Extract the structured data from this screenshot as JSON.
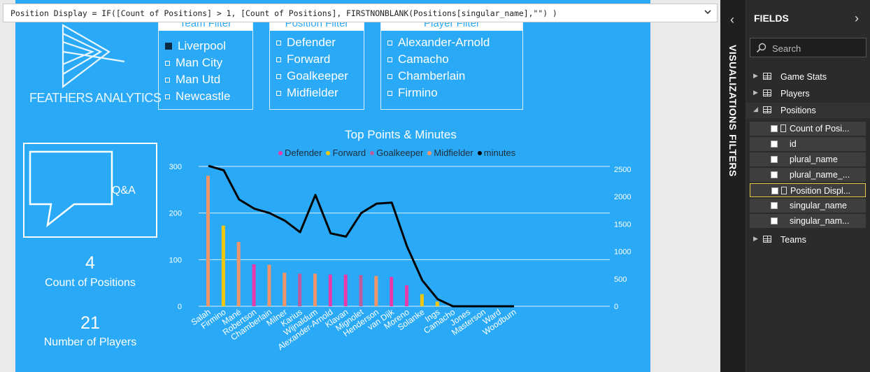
{
  "formula": {
    "text": "Position Display = IF([Count of Positions] > 1, [Count of Positions], FIRSTNONBLANK(Positions[singular_name],\"\") )"
  },
  "logo": {
    "text": "FEATHERS ANALYTICS"
  },
  "slicers": [
    {
      "title": "Team Filter",
      "items": [
        {
          "label": "Liverpool",
          "checked": true
        },
        {
          "label": "Man City",
          "checked": false
        },
        {
          "label": "Man Utd",
          "checked": false
        },
        {
          "label": "Newcastle",
          "checked": false
        }
      ]
    },
    {
      "title": "Position Filter",
      "items": [
        {
          "label": "Defender",
          "checked": false
        },
        {
          "label": "Forward",
          "checked": false
        },
        {
          "label": "Goalkeeper",
          "checked": false
        },
        {
          "label": "Midfielder",
          "checked": false
        }
      ]
    },
    {
      "title": "Player Filter",
      "items": [
        {
          "label": "Alexander-Arnold",
          "checked": false
        },
        {
          "label": "Camacho",
          "checked": false
        },
        {
          "label": "Chamberlain",
          "checked": false
        },
        {
          "label": "Firmino",
          "checked": false
        }
      ]
    }
  ],
  "qa": {
    "label": "Q&A"
  },
  "cards": [
    {
      "value": "4",
      "label": "Count of Positions"
    },
    {
      "value": "21",
      "label": "Number of Players"
    }
  ],
  "colors": {
    "defender": "#e83aaa",
    "forward": "#f2c80f",
    "goalkeeper": "#b95d9e",
    "midfielder": "#f0956a",
    "minutes": "#000000",
    "canvas": "#2aaaf6"
  },
  "chart_data": {
    "type": "bar",
    "title": "Top Points & Minutes",
    "categories": [
      "Salah",
      "Firmino",
      "Mané",
      "Robertson",
      "Chamberlain",
      "Milner",
      "Karius",
      "Wijnaldum",
      "Alexander-Arnold",
      "Klavan",
      "Mignolet",
      "Henderson",
      "van Dijk",
      "Moreno",
      "Solanke",
      "Ings",
      "Camacho",
      "Jones",
      "Masterson",
      "Ward",
      "Woodburn"
    ],
    "series": [
      {
        "name": "Defender",
        "values": [
          null,
          null,
          null,
          90,
          null,
          null,
          null,
          null,
          68,
          68,
          null,
          null,
          63,
          45,
          null,
          null,
          null,
          null,
          null,
          null,
          null
        ]
      },
      {
        "name": "Forward",
        "values": [
          null,
          173,
          null,
          null,
          null,
          null,
          null,
          null,
          null,
          null,
          null,
          null,
          null,
          null,
          26,
          10,
          null,
          null,
          null,
          null,
          null
        ]
      },
      {
        "name": "Goalkeeper",
        "values": [
          null,
          null,
          null,
          null,
          null,
          null,
          70,
          null,
          null,
          null,
          67,
          null,
          null,
          null,
          null,
          null,
          null,
          null,
          null,
          null,
          null
        ]
      },
      {
        "name": "Midfielder",
        "values": [
          280,
          null,
          138,
          null,
          89,
          72,
          null,
          70,
          null,
          null,
          null,
          65,
          null,
          null,
          null,
          null,
          null,
          null,
          null,
          null,
          null
        ]
      },
      {
        "name": "minutes",
        "values": [
          2560,
          2480,
          1950,
          1780,
          1700,
          1560,
          1350,
          2030,
          1330,
          1270,
          1700,
          1870,
          1890,
          1090,
          470,
          130,
          0,
          0,
          0,
          0,
          0
        ]
      }
    ],
    "y_left": {
      "ticks": [
        0,
        100,
        200,
        300
      ],
      "range": [
        0,
        300
      ]
    },
    "y_right": {
      "ticks": [
        0,
        500,
        1000,
        1500,
        2000,
        2500
      ],
      "range": [
        0,
        2550
      ]
    },
    "legend": "top-center",
    "grid": true
  },
  "panel": {
    "visualizations_label": "VISUALIZATIONS",
    "filters_label": "FILTERS",
    "fields_title": "FIELDS",
    "search_placeholder": "Search",
    "tables": [
      {
        "name": "Game Stats",
        "expanded": false
      },
      {
        "name": "Players",
        "expanded": false
      },
      {
        "name": "Positions",
        "expanded": true
      },
      {
        "name": "Teams",
        "expanded": false
      }
    ],
    "fields": [
      {
        "name": "Count of Posi...",
        "calc": true,
        "selected": false
      },
      {
        "name": "id",
        "calc": false,
        "selected": false
      },
      {
        "name": "plural_name",
        "calc": false,
        "selected": false
      },
      {
        "name": "plural_name_...",
        "calc": false,
        "selected": false
      },
      {
        "name": "Position Displ...",
        "calc": true,
        "selected": true
      },
      {
        "name": "singular_name",
        "calc": false,
        "selected": false
      },
      {
        "name": "singular_nam...",
        "calc": false,
        "selected": false
      }
    ]
  }
}
